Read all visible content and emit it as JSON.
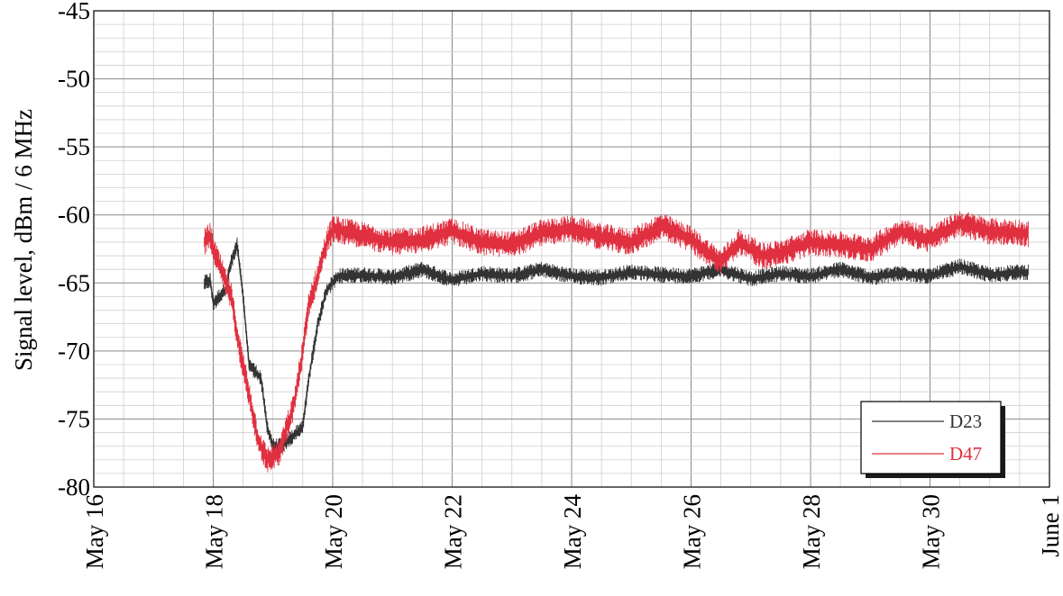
{
  "chart_data": {
    "type": "line",
    "title": "",
    "xlabel": "",
    "ylabel": "Signal level, dBm / 6 MHz",
    "xlim": [
      "May 16",
      "June 1"
    ],
    "ylim": [
      -80,
      -45
    ],
    "x_ticks": [
      "May 16",
      "May 18",
      "May 20",
      "May 22",
      "May 24",
      "May 26",
      "May 28",
      "May 30",
      "June 1"
    ],
    "y_ticks": [
      -45,
      -50,
      -55,
      -60,
      -65,
      -70,
      -75,
      -80
    ],
    "grid": true,
    "legend_position": "bottom-right",
    "series": [
      {
        "name": "D23",
        "color": "#333333",
        "noise_dB": 0.6,
        "points": [
          [
            "May 17.85",
            -65.0
          ],
          [
            "May 17.95",
            -64.8
          ],
          [
            "May 18.0",
            -66.5
          ],
          [
            "May 18.2",
            -65.5
          ],
          [
            "May 18.3",
            -63.5
          ],
          [
            "May 18.4",
            -62.2
          ],
          [
            "May 18.5",
            -66.0
          ],
          [
            "May 18.6",
            -71.0
          ],
          [
            "May 18.8",
            -72.0
          ],
          [
            "May 18.9",
            -75.5
          ],
          [
            "May 19.0",
            -77.0
          ],
          [
            "May 19.15",
            -77.0
          ],
          [
            "May 19.4",
            -76.0
          ],
          [
            "May 19.5",
            -75.5
          ],
          [
            "May 19.6",
            -72.0
          ],
          [
            "May 19.75",
            -68.0
          ],
          [
            "May 19.9",
            -65.5
          ],
          [
            "May 20.1",
            -64.5
          ],
          [
            "May 20.5",
            -64.4
          ],
          [
            "May 21.0",
            -64.6
          ],
          [
            "May 21.5",
            -64.0
          ],
          [
            "May 22.0",
            -64.8
          ],
          [
            "May 22.5",
            -64.3
          ],
          [
            "May 23.0",
            -64.5
          ],
          [
            "May 23.5",
            -64.0
          ],
          [
            "May 24.0",
            -64.5
          ],
          [
            "May 24.5",
            -64.6
          ],
          [
            "May 25.0",
            -64.2
          ],
          [
            "May 25.5",
            -64.4
          ],
          [
            "May 26.0",
            -64.5
          ],
          [
            "May 26.5",
            -64.0
          ],
          [
            "May 27.0",
            -64.7
          ],
          [
            "May 27.5",
            -64.3
          ],
          [
            "May 28.0",
            -64.5
          ],
          [
            "May 28.5",
            -64.0
          ],
          [
            "May 29.0",
            -64.6
          ],
          [
            "May 29.5",
            -64.3
          ],
          [
            "May 30.0",
            -64.5
          ],
          [
            "May 30.5",
            -63.8
          ],
          [
            "May 31.0",
            -64.4
          ],
          [
            "May 31.5",
            -64.2
          ],
          [
            "May 31.65",
            -64.2
          ]
        ]
      },
      {
        "name": "D47",
        "color": "#e03040",
        "noise_dB": 1.0,
        "points": [
          [
            "May 17.85",
            -62.0
          ],
          [
            "May 17.95",
            -61.5
          ],
          [
            "May 18.0",
            -62.5
          ],
          [
            "May 18.3",
            -66.0
          ],
          [
            "May 18.45",
            -70.0
          ],
          [
            "May 18.55",
            -72.0
          ],
          [
            "May 18.75",
            -76.5
          ],
          [
            "May 18.9",
            -78.0
          ],
          [
            "May 19.1",
            -77.5
          ],
          [
            "May 19.35",
            -74.0
          ],
          [
            "May 19.5",
            -70.0
          ],
          [
            "May 19.6",
            -66.5
          ],
          [
            "May 19.75",
            -64.5
          ],
          [
            "May 19.9",
            -62.0
          ],
          [
            "May 20.0",
            -61.0
          ],
          [
            "May 20.5",
            -61.5
          ],
          [
            "May 21.0",
            -62.0
          ],
          [
            "May 21.5",
            -61.8
          ],
          [
            "May 22.0",
            -61.2
          ],
          [
            "May 22.5",
            -62.0
          ],
          [
            "May 23.0",
            -62.2
          ],
          [
            "May 23.5",
            -61.3
          ],
          [
            "May 24.0",
            -61.0
          ],
          [
            "May 24.5",
            -61.6
          ],
          [
            "May 25.0",
            -62.0
          ],
          [
            "May 25.5",
            -60.8
          ],
          [
            "May 26.0",
            -61.8
          ],
          [
            "May 26.5",
            -63.5
          ],
          [
            "May 26.8",
            -62.0
          ],
          [
            "May 27.2",
            -63.0
          ],
          [
            "May 27.5",
            -62.8
          ],
          [
            "May 28.0",
            -62.0
          ],
          [
            "May 28.5",
            -62.2
          ],
          [
            "May 29.0",
            -62.5
          ],
          [
            "May 29.5",
            -61.2
          ],
          [
            "May 30.0",
            -61.8
          ],
          [
            "May 30.5",
            -60.6
          ],
          [
            "May 31.0",
            -61.2
          ],
          [
            "May 31.5",
            -61.3
          ],
          [
            "May 31.65",
            -61.4
          ]
        ]
      }
    ]
  }
}
